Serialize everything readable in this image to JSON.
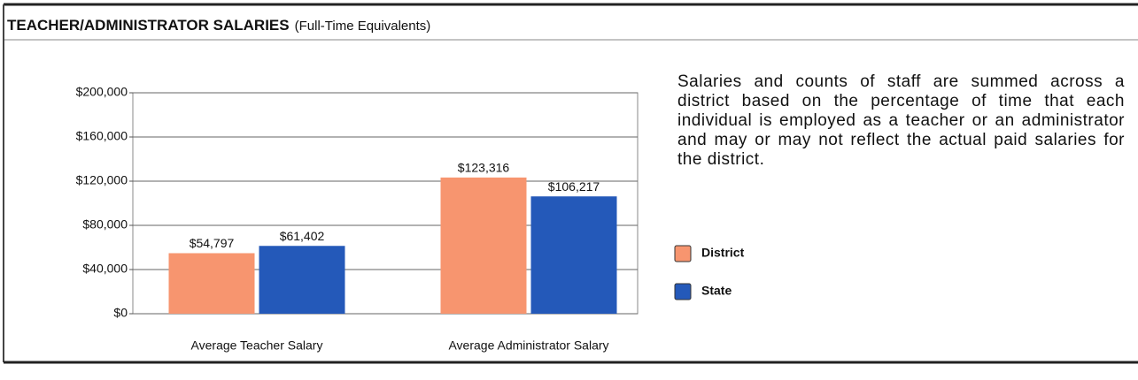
{
  "chart_data": {
    "type": "bar",
    "title": "TEACHER/ADMINISTRATOR SALARIES",
    "subtitle": "(Full-Time Equivalents)",
    "note": "Salaries and counts of staff are summed across a district based on the percentage of time that each individual is employed as a teacher or an administrator and may or may not reflect the actual paid salaries for the district.",
    "categories": [
      "Average Teacher Salary",
      "Average Administrator Salary"
    ],
    "series": [
      {
        "name": "District",
        "color": "#f7956f",
        "values": [
          54797,
          123316
        ],
        "value_labels": [
          "$54,797",
          "$123,316"
        ]
      },
      {
        "name": "State",
        "color": "#2459b9",
        "values": [
          61402,
          106217
        ],
        "value_labels": [
          "$61,402",
          "$106,217"
        ]
      }
    ],
    "ylim": [
      0,
      200000
    ],
    "yticks": [
      {
        "value": 0,
        "label": "$0"
      },
      {
        "value": 40000,
        "label": "$40,000"
      },
      {
        "value": 80000,
        "label": "$80,000"
      },
      {
        "value": 120000,
        "label": "$120,000"
      },
      {
        "value": 160000,
        "label": "$160,000"
      },
      {
        "value": 200000,
        "label": "$200,000"
      }
    ],
    "grid": true,
    "legend": "right"
  }
}
